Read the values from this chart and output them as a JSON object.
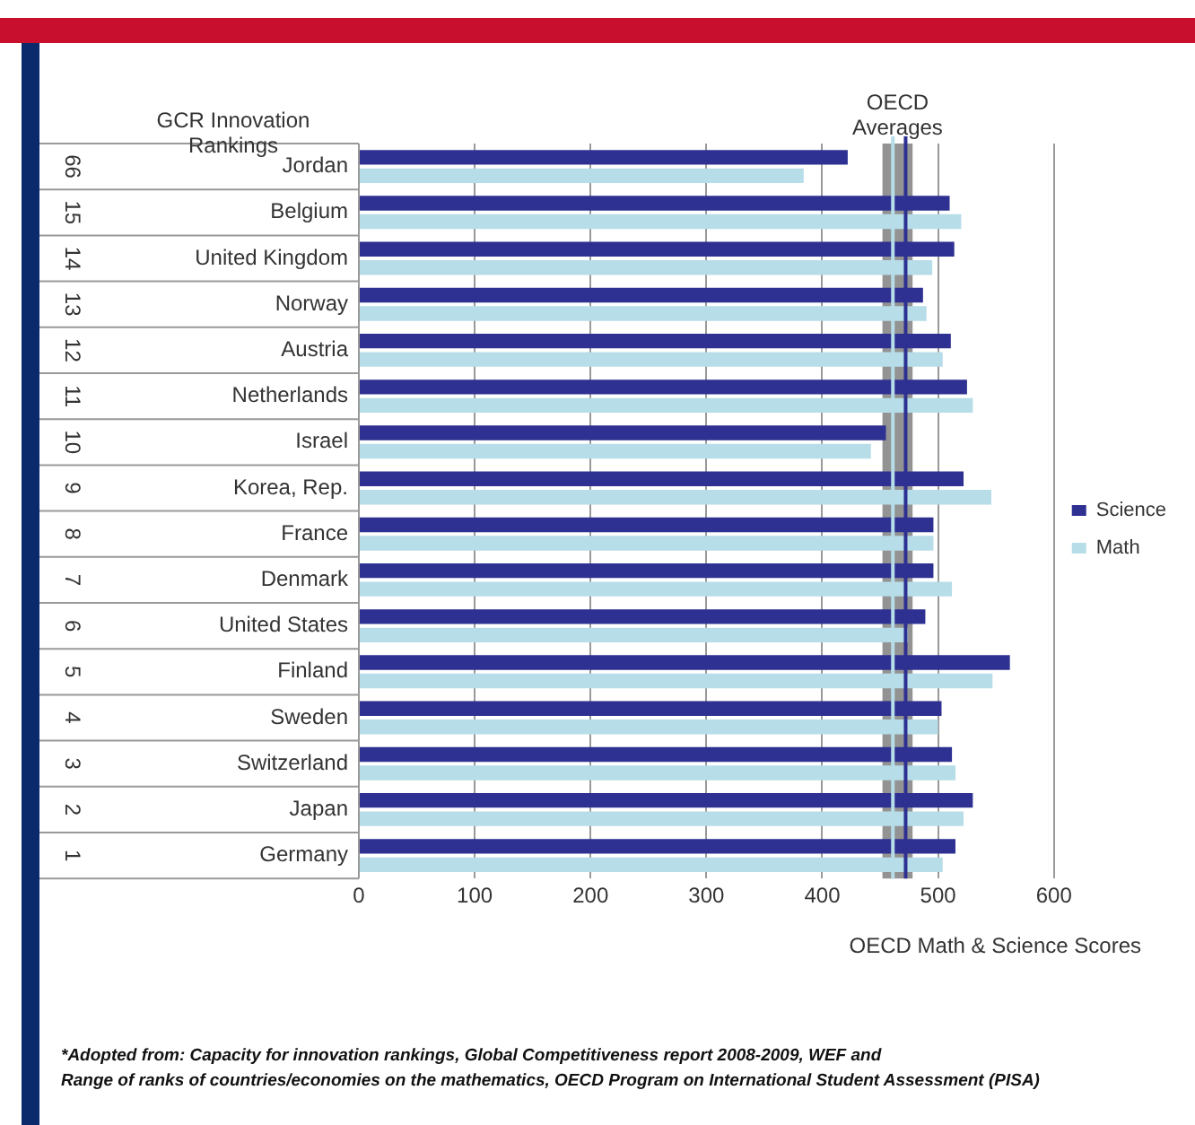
{
  "chart_data": {
    "type": "bar",
    "orientation": "horizontal",
    "xlabel": "OECD Math & Science  Scores",
    "categories": [
      "Jordan",
      "Belgium",
      "United Kingdom",
      "Norway",
      "Austria",
      "Netherlands",
      "Israel",
      "Korea, Rep.",
      "France",
      "Denmark",
      "United States",
      "Finland",
      "Sweden",
      "Switzerland",
      "Japan",
      "Germany"
    ],
    "series": [
      {
        "name": "Science",
        "color": "#2e3192",
        "values": [
          422,
          510,
          514,
          487,
          511,
          525,
          455,
          522,
          496,
          496,
          489,
          562,
          503,
          512,
          530,
          515
        ]
      },
      {
        "name": "Math",
        "color": "#b7dde8",
        "values": [
          384,
          520,
          495,
          490,
          504,
          530,
          442,
          546,
          496,
          512,
          474,
          547,
          500,
          515,
          522,
          504
        ]
      }
    ],
    "xlim": [
      0,
      600
    ],
    "xticks": [
      0,
      100,
      200,
      300,
      400,
      500,
      600
    ],
    "grid": "x",
    "legend": "right",
    "bands": [
      {
        "axis": "x",
        "from": 452,
        "to": 478,
        "label": "OECD Averages",
        "color": "#808080"
      }
    ],
    "ref_lines": [
      {
        "axis": "x",
        "value": 461,
        "color": "#b7dde8"
      },
      {
        "axis": "x",
        "value": 472,
        "color": "#2e3192"
      }
    ],
    "annotations": [
      "GCR Innovation Rankings",
      "66",
      "15",
      "14",
      "13",
      "12",
      "11",
      "10",
      "9",
      "8",
      "7",
      "6",
      "5",
      "4",
      "3",
      "2",
      "1",
      "*Adopted from: Capacity for innovation rankings, Global Competitiveness report 2008-2009, WEF and",
      "Range of ranks of countries/economies on the mathematics, OECD Program on International Student Assessment (PISA)"
    ]
  }
}
